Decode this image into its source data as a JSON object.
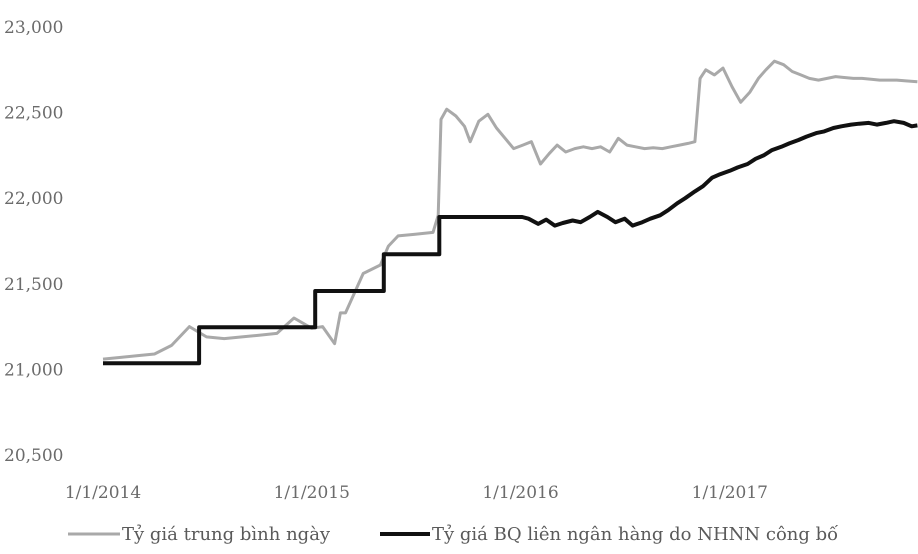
{
  "chart_data": {
    "type": "line",
    "title": "",
    "xlabel": "",
    "ylabel": "",
    "ylim": [
      20500,
      23000
    ],
    "y_ticks": [
      "20,500",
      "21,000",
      "21,500",
      "22,000",
      "22,500",
      "23,000"
    ],
    "x_ticks": [
      "1/1/2014",
      "1/1/2015",
      "1/1/2016",
      "1/1/2017"
    ],
    "grid": false,
    "legend_position": "bottom",
    "series": [
      {
        "name": "Tỷ giá trung bình ngày",
        "color": "#a9a9a9",
        "points": [
          [
            "2014-01-01",
            21060
          ],
          [
            "2014-02-01",
            21070
          ],
          [
            "2014-03-01",
            21080
          ],
          [
            "2014-04-01",
            21090
          ],
          [
            "2014-05-01",
            21140
          ],
          [
            "2014-06-01",
            21250
          ],
          [
            "2014-07-01",
            21190
          ],
          [
            "2014-08-01",
            21180
          ],
          [
            "2014-09-01",
            21190
          ],
          [
            "2014-10-01",
            21200
          ],
          [
            "2014-11-01",
            21210
          ],
          [
            "2014-12-01",
            21300
          ],
          [
            "2015-01-01",
            21240
          ],
          [
            "2015-01-20",
            21250
          ],
          [
            "2015-02-10",
            21150
          ],
          [
            "2015-02-20",
            21330
          ],
          [
            "2015-03-01",
            21330
          ],
          [
            "2015-04-01",
            21560
          ],
          [
            "2015-05-01",
            21610
          ],
          [
            "2015-05-15",
            21720
          ],
          [
            "2015-06-01",
            21780
          ],
          [
            "2015-07-01",
            21790
          ],
          [
            "2015-08-01",
            21800
          ],
          [
            "2015-08-10",
            21900
          ],
          [
            "2015-08-15",
            22460
          ],
          [
            "2015-08-25",
            22520
          ],
          [
            "2015-09-10",
            22480
          ],
          [
            "2015-09-25",
            22420
          ],
          [
            "2015-10-05",
            22330
          ],
          [
            "2015-10-20",
            22450
          ],
          [
            "2015-11-05",
            22490
          ],
          [
            "2015-11-20",
            22410
          ],
          [
            "2015-12-05",
            22350
          ],
          [
            "2015-12-20",
            22290
          ],
          [
            "2016-01-05",
            22310
          ],
          [
            "2016-01-20",
            22330
          ],
          [
            "2016-02-05",
            22200
          ],
          [
            "2016-02-20",
            22260
          ],
          [
            "2016-03-05",
            22310
          ],
          [
            "2016-03-20",
            22270
          ],
          [
            "2016-04-05",
            22290
          ],
          [
            "2016-04-20",
            22300
          ],
          [
            "2016-05-05",
            22290
          ],
          [
            "2016-05-20",
            22300
          ],
          [
            "2016-06-05",
            22270
          ],
          [
            "2016-06-20",
            22350
          ],
          [
            "2016-07-05",
            22310
          ],
          [
            "2016-07-20",
            22300
          ],
          [
            "2016-08-05",
            22290
          ],
          [
            "2016-08-20",
            22295
          ],
          [
            "2016-09-05",
            22290
          ],
          [
            "2016-09-20",
            22300
          ],
          [
            "2016-10-05",
            22310
          ],
          [
            "2016-10-20",
            22320
          ],
          [
            "2016-11-01",
            22330
          ],
          [
            "2016-11-10",
            22700
          ],
          [
            "2016-11-20",
            22750
          ],
          [
            "2016-12-05",
            22720
          ],
          [
            "2016-12-20",
            22760
          ],
          [
            "2017-01-05",
            22650
          ],
          [
            "2017-01-20",
            22560
          ],
          [
            "2017-02-05",
            22620
          ],
          [
            "2017-02-20",
            22700
          ],
          [
            "2017-03-05",
            22750
          ],
          [
            "2017-03-20",
            22800
          ],
          [
            "2017-04-05",
            22780
          ],
          [
            "2017-04-20",
            22740
          ],
          [
            "2017-05-05",
            22720
          ],
          [
            "2017-05-20",
            22700
          ],
          [
            "2017-06-05",
            22690
          ],
          [
            "2017-06-20",
            22700
          ],
          [
            "2017-07-05",
            22710
          ],
          [
            "2017-07-20",
            22705
          ],
          [
            "2017-08-05",
            22700
          ],
          [
            "2017-08-20",
            22700
          ],
          [
            "2017-09-05",
            22695
          ],
          [
            "2017-09-20",
            22690
          ],
          [
            "2017-10-05",
            22690
          ],
          [
            "2017-10-20",
            22690
          ],
          [
            "2017-11-05",
            22685
          ],
          [
            "2017-11-25",
            22680
          ]
        ]
      },
      {
        "name": "Tỷ giá BQ liên ngân hàng do NHNN công bố",
        "color": "#111111",
        "step": true,
        "points": [
          [
            "2014-01-01",
            21036
          ],
          [
            "2014-06-18",
            21036
          ],
          [
            "2014-06-18",
            21246
          ],
          [
            "2015-01-07",
            21246
          ],
          [
            "2015-01-07",
            21458
          ],
          [
            "2015-05-07",
            21458
          ],
          [
            "2015-05-07",
            21673
          ],
          [
            "2015-08-12",
            21673
          ],
          [
            "2015-08-12",
            21890
          ],
          [
            "2016-01-04",
            21890
          ],
          [
            "2016-01-15",
            21880
          ],
          [
            "2016-02-01",
            21850
          ],
          [
            "2016-02-15",
            21875
          ],
          [
            "2016-03-01",
            21840
          ],
          [
            "2016-03-15",
            21855
          ],
          [
            "2016-04-01",
            21870
          ],
          [
            "2016-04-15",
            21860
          ],
          [
            "2016-05-01",
            21890
          ],
          [
            "2016-05-15",
            21920
          ],
          [
            "2016-06-01",
            21890
          ],
          [
            "2016-06-15",
            21860
          ],
          [
            "2016-07-01",
            21880
          ],
          [
            "2016-07-15",
            21840
          ],
          [
            "2016-08-01",
            21860
          ],
          [
            "2016-08-15",
            21880
          ],
          [
            "2016-09-01",
            21900
          ],
          [
            "2016-09-15",
            21930
          ],
          [
            "2016-10-01",
            21970
          ],
          [
            "2016-10-15",
            22000
          ],
          [
            "2016-11-01",
            22040
          ],
          [
            "2016-11-15",
            22070
          ],
          [
            "2016-12-01",
            22120
          ],
          [
            "2016-12-15",
            22140
          ],
          [
            "2017-01-01",
            22160
          ],
          [
            "2017-01-15",
            22180
          ],
          [
            "2017-02-01",
            22200
          ],
          [
            "2017-02-15",
            22230
          ],
          [
            "2017-03-01",
            22250
          ],
          [
            "2017-03-15",
            22280
          ],
          [
            "2017-04-01",
            22300
          ],
          [
            "2017-04-15",
            22320
          ],
          [
            "2017-05-01",
            22340
          ],
          [
            "2017-05-15",
            22360
          ],
          [
            "2017-06-01",
            22380
          ],
          [
            "2017-06-15",
            22390
          ],
          [
            "2017-07-01",
            22410
          ],
          [
            "2017-07-15",
            22420
          ],
          [
            "2017-08-01",
            22430
          ],
          [
            "2017-08-15",
            22435
          ],
          [
            "2017-09-01",
            22440
          ],
          [
            "2017-09-15",
            22430
          ],
          [
            "2017-10-01",
            22440
          ],
          [
            "2017-10-15",
            22450
          ],
          [
            "2017-11-01",
            22440
          ],
          [
            "2017-11-15",
            22420
          ],
          [
            "2017-11-25",
            22425
          ]
        ]
      }
    ]
  }
}
